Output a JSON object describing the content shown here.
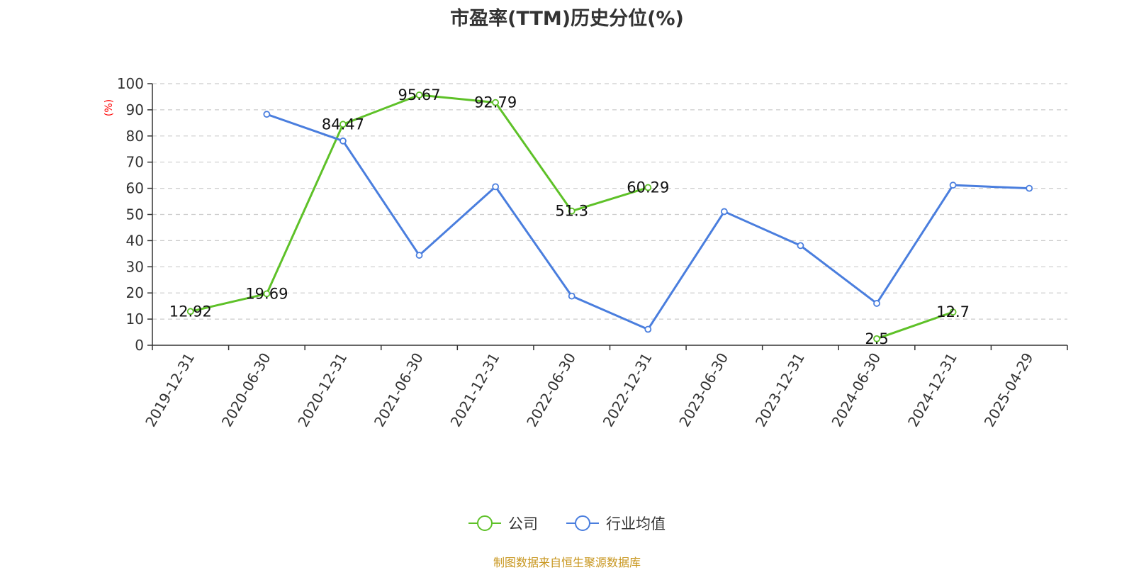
{
  "chart_data": {
    "type": "line",
    "title": "市盈率(TTM)历史分位(%)",
    "ylabel": "(%)",
    "ylim": [
      0,
      100
    ],
    "yticks": [
      0,
      10,
      20,
      30,
      40,
      50,
      60,
      70,
      80,
      90,
      100
    ],
    "grid": "horizontal dashed",
    "legend_position": "bottom-center",
    "categories": [
      "2019-12-31",
      "2020-06-30",
      "2020-12-31",
      "2021-06-30",
      "2021-12-31",
      "2022-06-30",
      "2022-12-31",
      "2023-06-30",
      "2023-12-31",
      "2024-06-30",
      "2024-12-31",
      "2025-04-29"
    ],
    "series": [
      {
        "name": "公司",
        "color": "#5ec128",
        "values": [
          12.92,
          19.69,
          84.47,
          95.67,
          92.79,
          51.3,
          60.29,
          null,
          null,
          2.5,
          12.7,
          null
        ],
        "labels": [
          "12.92",
          "19.69",
          "84.47",
          "95.67",
          "92.79",
          "51.3",
          "60.29",
          null,
          null,
          "2.5",
          "12.7",
          null
        ]
      },
      {
        "name": "行业均值",
        "color": "#4a7ede",
        "values": [
          null,
          88.3,
          78.1,
          34.4,
          60.6,
          18.8,
          6.1,
          51.1,
          38.1,
          16.0,
          61.2,
          60.0
        ],
        "labels": []
      }
    ]
  },
  "footer": {
    "source": "制图数据来自恒生聚源数据库"
  }
}
